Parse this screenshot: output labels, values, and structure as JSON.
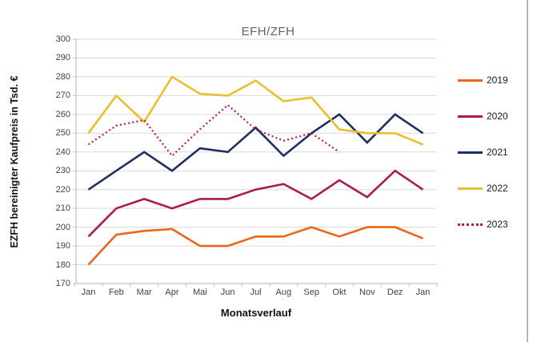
{
  "chart_data": {
    "type": "line",
    "title": "EFH/ZFH",
    "xlabel": "Monatsverlauf",
    "ylabel": "EZFH bereinigter Kaufpreis in Tsd. €",
    "categories": [
      "Jan",
      "Feb",
      "Mar",
      "Apr",
      "Mai",
      "Jun",
      "Jul",
      "Aug",
      "Sep",
      "Okt",
      "Nov",
      "Dez",
      "Jan"
    ],
    "ylim": [
      170,
      300
    ],
    "ytick_step": 10,
    "grid": "horizontal-only",
    "legend_position": "right",
    "series": [
      {
        "name": "2019",
        "color": "#ec6519",
        "line_style": "solid",
        "values": [
          180,
          196,
          198,
          199,
          190,
          190,
          195,
          195,
          200,
          195,
          200,
          200,
          194
        ]
      },
      {
        "name": "2020",
        "color": "#aa1a56",
        "line_style": "solid",
        "values": [
          195,
          210,
          215,
          210,
          215,
          215,
          220,
          223,
          215,
          225,
          216,
          230,
          220
        ]
      },
      {
        "name": "2021",
        "color": "#1f2f5f",
        "line_style": "solid",
        "values": [
          220,
          230,
          240,
          230,
          242,
          240,
          253,
          238,
          250,
          260,
          245,
          260,
          250
        ]
      },
      {
        "name": "2022",
        "color": "#e9bf2f",
        "line_style": "solid",
        "values": [
          250,
          270,
          256,
          280,
          271,
          270,
          278,
          267,
          269,
          252,
          250,
          250,
          244
        ]
      },
      {
        "name": "2023",
        "color": "#c0193f",
        "line_style": "dotted",
        "values": [
          244,
          254,
          257,
          238,
          252,
          265,
          252,
          246,
          250,
          240,
          null,
          null,
          null
        ]
      }
    ],
    "colors": {
      "gridline": "#d9d9d9",
      "axis": "#bfbfbf",
      "tick_text": "#3f3f3f",
      "title_text": "#5b6472"
    }
  }
}
